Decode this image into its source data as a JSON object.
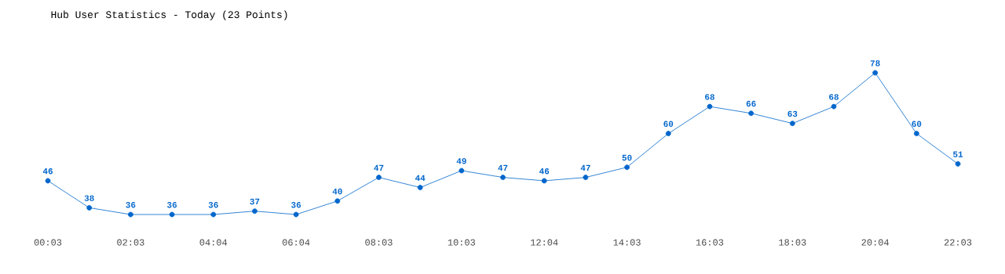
{
  "chart_data": {
    "type": "line",
    "title": "Hub User Statistics - Today (23 Points)",
    "categories": [
      "00:03",
      null,
      "02:03",
      null,
      "04:04",
      null,
      "06:04",
      null,
      "08:03",
      null,
      "10:03",
      null,
      "12:04",
      null,
      "14:03",
      null,
      "16:03",
      null,
      "18:03",
      null,
      "20:04",
      null,
      "22:03"
    ],
    "values": [
      46,
      38,
      36,
      36,
      36,
      37,
      36,
      40,
      47,
      44,
      49,
      47,
      46,
      47,
      50,
      60,
      68,
      66,
      63,
      68,
      78,
      60,
      51
    ],
    "color": "#0066cc",
    "marker": "circle",
    "data_labels": true
  }
}
